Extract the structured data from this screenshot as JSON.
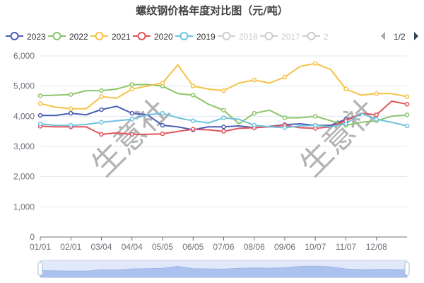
{
  "chart_data": {
    "type": "line",
    "title": "螺纹钢价格年度对比图（元/吨）",
    "xlabel": "",
    "ylabel": "",
    "ylim": [
      0,
      6000
    ],
    "yticks": [
      "0",
      "1,000",
      "2,000",
      "3,000",
      "4,000",
      "5,000",
      "6,000"
    ],
    "grid": true,
    "legend_position": "top",
    "legend_page": "1/2",
    "legend_hidden": [
      {
        "name": "2018",
        "color": "#cccccc"
      },
      {
        "name": "2017",
        "color": "#cccccc"
      },
      {
        "name": "2",
        "color": "#cccccc"
      }
    ],
    "watermark": "生意社",
    "xtick_labels": [
      "01/01",
      "02/01",
      "03/04",
      "04/04",
      "05/05",
      "06/05",
      "07/06",
      "08/06",
      "09/06",
      "10/07",
      "11/07",
      "12/08"
    ],
    "x": [
      "01/01",
      "01/16",
      "02/01",
      "02/16",
      "03/04",
      "03/19",
      "04/04",
      "04/19",
      "05/05",
      "05/20",
      "06/05",
      "06/20",
      "07/06",
      "07/21",
      "08/06",
      "08/21",
      "09/06",
      "09/21",
      "10/07",
      "10/22",
      "11/07",
      "11/22",
      "12/08",
      "12/23",
      "12/31"
    ],
    "series": [
      {
        "name": "2023",
        "color": "#4a5fb5",
        "values": [
          4030,
          4030,
          4100,
          4050,
          4220,
          4330,
          4100,
          4050,
          3700,
          3650,
          3550,
          3650,
          3650,
          3680,
          3620,
          3660,
          3720,
          3750,
          3700,
          3700,
          3900,
          4050,
          null,
          null,
          null
        ]
      },
      {
        "name": "2022",
        "color": "#8cc56a",
        "values": [
          4680,
          4700,
          4720,
          4850,
          4850,
          4900,
          5050,
          5050,
          5000,
          4750,
          4700,
          4400,
          4200,
          3750,
          4100,
          4200,
          3950,
          3950,
          4000,
          3850,
          3700,
          3800,
          3850,
          4000,
          4050
        ]
      },
      {
        "name": "2021",
        "color": "#f6c244",
        "values": [
          4420,
          4300,
          4250,
          4250,
          4650,
          4600,
          4900,
          5000,
          5100,
          5700,
          5000,
          4900,
          4850,
          5100,
          5200,
          5100,
          5300,
          5650,
          5750,
          5550,
          4900,
          4700,
          4750,
          4750,
          4650
        ]
      },
      {
        "name": "2020",
        "color": "#e5545b",
        "values": [
          3670,
          3650,
          3650,
          3650,
          3400,
          3450,
          3400,
          3400,
          3420,
          3500,
          3570,
          3550,
          3500,
          3600,
          3620,
          3650,
          3700,
          3620,
          3600,
          3650,
          3850,
          4100,
          4050,
          4500,
          4400
        ]
      },
      {
        "name": "2019",
        "color": "#6ec2dc",
        "values": [
          3750,
          3700,
          3700,
          3730,
          3800,
          3850,
          3900,
          4050,
          4100,
          3950,
          3850,
          3780,
          3950,
          3900,
          3700,
          3650,
          3620,
          3680,
          3700,
          3650,
          3750,
          4100,
          3900,
          3800,
          3680
        ]
      }
    ]
  }
}
